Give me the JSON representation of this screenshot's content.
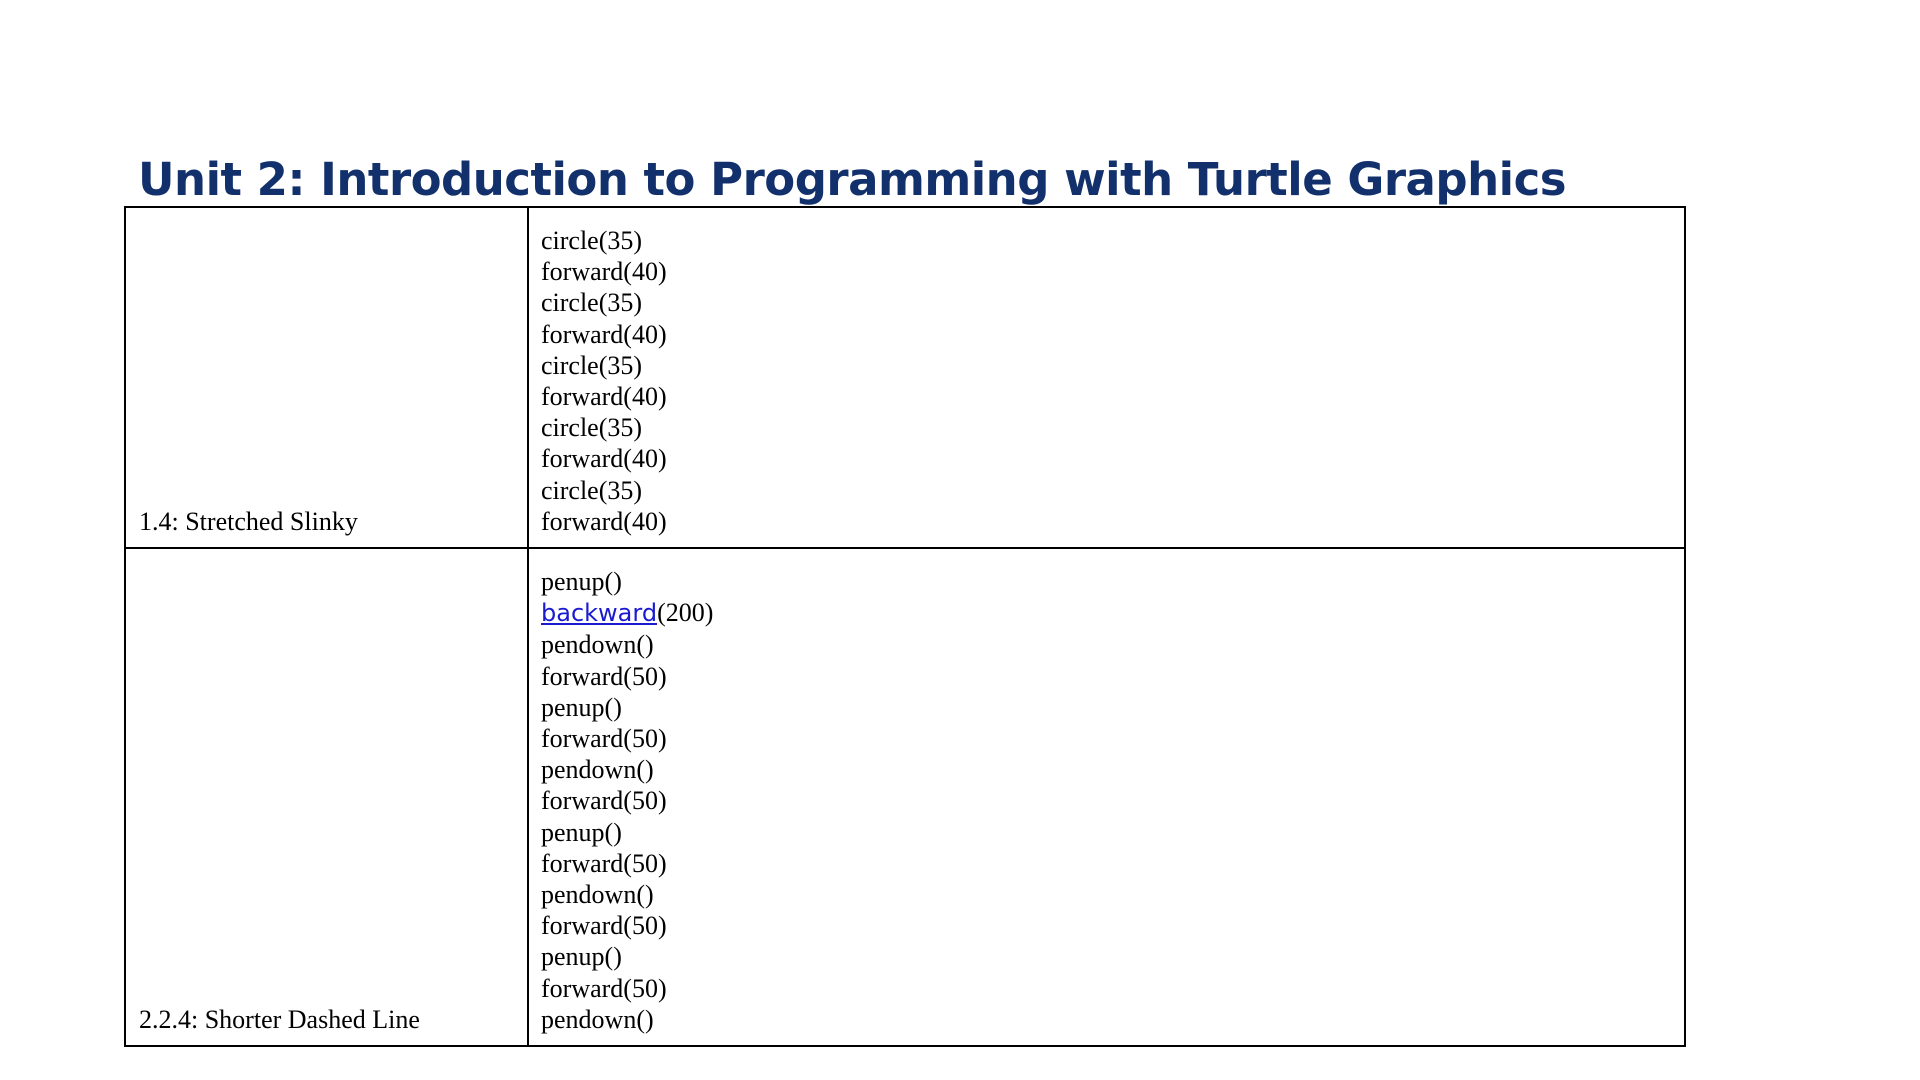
{
  "document": {
    "title": "Unit 2: Introduction to Programming with Turtle Graphics"
  },
  "rows": [
    {
      "label": "1.4: Stretched Slinky",
      "code": [
        "circle(35)",
        "forward(40)",
        "circle(35)",
        "forward(40)",
        "circle(35)",
        "forward(40)",
        "circle(35)",
        "forward(40)",
        "circle(35)",
        "forward(40)"
      ]
    },
    {
      "label": "2.2.4: Shorter Dashed Line",
      "code_first": "penup()",
      "link_line": {
        "link_text": "backward",
        "rest": "(200)"
      },
      "code": [
        "pendown()",
        "forward(50)",
        "penup()",
        "forward(50)",
        "pendown()",
        "forward(50)",
        "penup()",
        "forward(50)",
        "pendown()",
        "forward(50)",
        "penup()",
        "forward(50)",
        "pendown()"
      ]
    }
  ],
  "colors": {
    "title": "#12306b",
    "link": "#1a1ad0",
    "border": "#000000"
  }
}
